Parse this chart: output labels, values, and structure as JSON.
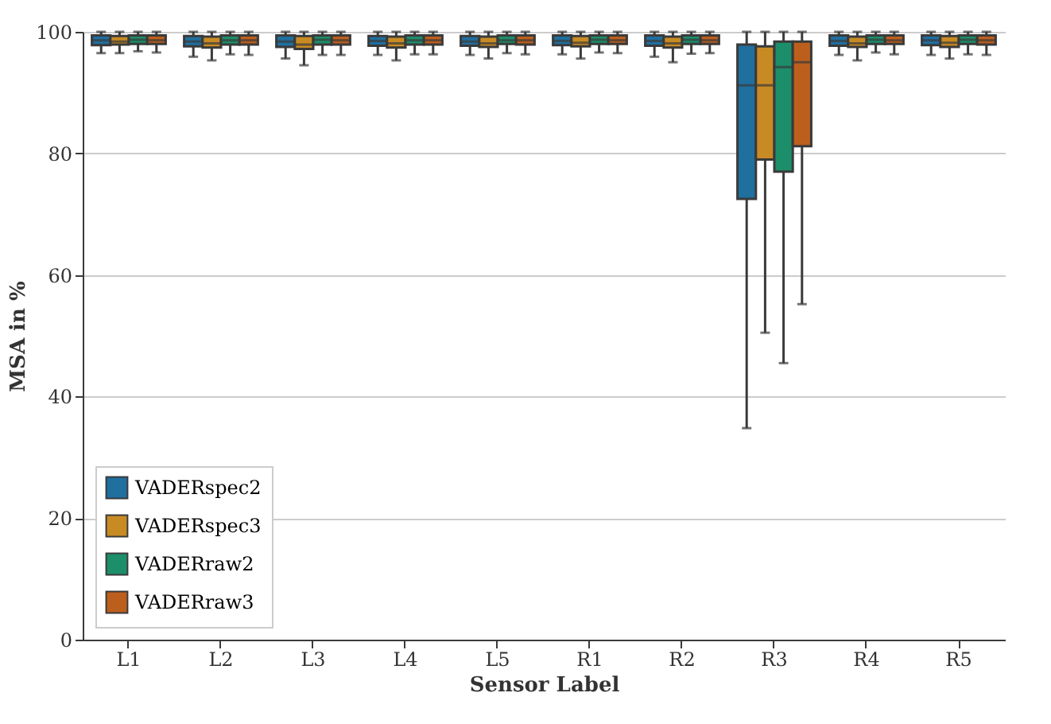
{
  "chart_data": {
    "type": "box",
    "xlabel": "Sensor Label",
    "ylabel": "MSA in %",
    "categories": [
      "L1",
      "L2",
      "L3",
      "L4",
      "L5",
      "R1",
      "R2",
      "R3",
      "R4",
      "R5"
    ],
    "ylim": [
      0,
      100
    ],
    "yticks": [
      0,
      20,
      40,
      60,
      80,
      100
    ],
    "grid": "y",
    "legend": "bottom left",
    "series": [
      {
        "name": "VADERspec2",
        "color": "#1f6f9f",
        "boxes": [
          {
            "low": 96.5,
            "q1": 97.8,
            "median": 98.6,
            "q3": 99.4,
            "high": 100
          },
          {
            "low": 95.9,
            "q1": 97.6,
            "median": 98.4,
            "q3": 99.3,
            "high": 100
          },
          {
            "low": 95.6,
            "q1": 97.5,
            "median": 98.4,
            "q3": 99.4,
            "high": 100
          },
          {
            "low": 96.2,
            "q1": 97.7,
            "median": 98.5,
            "q3": 99.3,
            "high": 100
          },
          {
            "low": 96.2,
            "q1": 97.7,
            "median": 98.4,
            "q3": 99.3,
            "high": 100
          },
          {
            "low": 96.3,
            "q1": 97.8,
            "median": 98.5,
            "q3": 99.4,
            "high": 100
          },
          {
            "low": 95.9,
            "q1": 97.7,
            "median": 98.5,
            "q3": 99.4,
            "high": 100
          },
          {
            "low": 34.8,
            "q1": 72.5,
            "median": 91.2,
            "q3": 97.9,
            "high": 100
          },
          {
            "low": 96.2,
            "q1": 97.7,
            "median": 98.5,
            "q3": 99.4,
            "high": 100
          },
          {
            "low": 96.2,
            "q1": 97.8,
            "median": 98.6,
            "q3": 99.4,
            "high": 100
          }
        ]
      },
      {
        "name": "VADERspec3",
        "color": "#c88b23",
        "boxes": [
          {
            "low": 96.5,
            "q1": 97.9,
            "median": 98.4,
            "q3": 99.3,
            "high": 100
          },
          {
            "low": 95.3,
            "q1": 97.4,
            "median": 98.1,
            "q3": 99.2,
            "high": 100
          },
          {
            "low": 94.5,
            "q1": 97.2,
            "median": 97.9,
            "q3": 99.3,
            "high": 100
          },
          {
            "low": 95.3,
            "q1": 97.4,
            "median": 98.1,
            "q3": 99.2,
            "high": 100
          },
          {
            "low": 95.6,
            "q1": 97.5,
            "median": 98.1,
            "q3": 99.2,
            "high": 100
          },
          {
            "low": 95.6,
            "q1": 97.6,
            "median": 98.2,
            "q3": 99.3,
            "high": 100
          },
          {
            "low": 95.0,
            "q1": 97.4,
            "median": 98.1,
            "q3": 99.2,
            "high": 100
          },
          {
            "low": 50.5,
            "q1": 79.0,
            "median": 91.2,
            "q3": 97.6,
            "high": 100
          },
          {
            "low": 95.3,
            "q1": 97.5,
            "median": 98.1,
            "q3": 99.2,
            "high": 100
          },
          {
            "low": 95.6,
            "q1": 97.5,
            "median": 98.2,
            "q3": 99.3,
            "high": 100
          }
        ]
      },
      {
        "name": "VADERraw2",
        "color": "#1c8e6a",
        "boxes": [
          {
            "low": 96.8,
            "q1": 98.0,
            "median": 98.7,
            "q3": 99.4,
            "high": 100
          },
          {
            "low": 96.3,
            "q1": 97.9,
            "median": 98.6,
            "q3": 99.4,
            "high": 100
          },
          {
            "low": 96.2,
            "q1": 97.9,
            "median": 98.7,
            "q3": 99.4,
            "high": 100
          },
          {
            "low": 96.3,
            "q1": 97.9,
            "median": 98.6,
            "q3": 99.4,
            "high": 100
          },
          {
            "low": 96.5,
            "q1": 98.0,
            "median": 98.6,
            "q3": 99.4,
            "high": 100
          },
          {
            "low": 96.6,
            "q1": 98.0,
            "median": 98.7,
            "q3": 99.4,
            "high": 100
          },
          {
            "low": 96.4,
            "q1": 98.0,
            "median": 98.7,
            "q3": 99.4,
            "high": 100
          },
          {
            "low": 45.5,
            "q1": 77.0,
            "median": 94.2,
            "q3": 98.4,
            "high": 100
          },
          {
            "low": 96.6,
            "q1": 98.0,
            "median": 98.7,
            "q3": 99.4,
            "high": 100
          },
          {
            "low": 96.3,
            "q1": 98.0,
            "median": 98.7,
            "q3": 99.4,
            "high": 100
          }
        ]
      },
      {
        "name": "VADERraw3",
        "color": "#bd5f1c",
        "boxes": [
          {
            "low": 96.6,
            "q1": 98.0,
            "median": 98.6,
            "q3": 99.4,
            "high": 100
          },
          {
            "low": 96.2,
            "q1": 97.9,
            "median": 98.6,
            "q3": 99.4,
            "high": 100
          },
          {
            "low": 96.2,
            "q1": 97.9,
            "median": 98.6,
            "q3": 99.4,
            "high": 100
          },
          {
            "low": 96.3,
            "q1": 97.9,
            "median": 98.6,
            "q3": 99.4,
            "high": 100
          },
          {
            "low": 96.3,
            "q1": 97.9,
            "median": 98.6,
            "q3": 99.4,
            "high": 100
          },
          {
            "low": 96.5,
            "q1": 98.0,
            "median": 98.6,
            "q3": 99.4,
            "high": 100
          },
          {
            "low": 96.5,
            "q1": 98.0,
            "median": 98.6,
            "q3": 99.4,
            "high": 100
          },
          {
            "low": 55.2,
            "q1": 81.2,
            "median": 95.0,
            "q3": 98.4,
            "high": 100
          },
          {
            "low": 96.3,
            "q1": 98.0,
            "median": 98.6,
            "q3": 99.4,
            "high": 100
          },
          {
            "low": 96.2,
            "q1": 97.9,
            "median": 98.6,
            "q3": 99.4,
            "high": 100
          }
        ]
      }
    ]
  }
}
